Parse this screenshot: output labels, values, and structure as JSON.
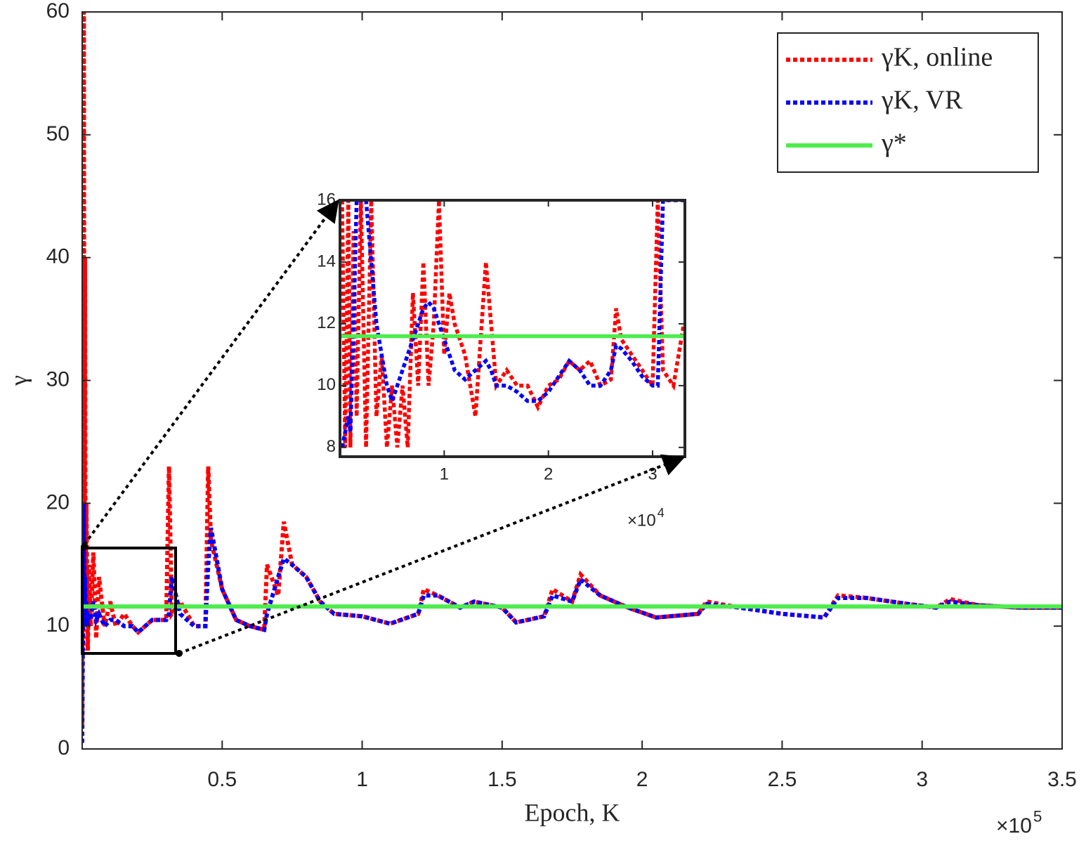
{
  "chart_data": [
    {
      "type": "line",
      "xlabel": "Epoch, K",
      "ylabel": "γ",
      "x_scale": {
        "base": "×10",
        "exponent": "5"
      },
      "xlim": [
        0,
        3.5
      ],
      "ylim": [
        0,
        60
      ],
      "xticks": [
        0.5,
        1,
        1.5,
        2,
        2.5,
        3,
        3.5
      ],
      "yticks": [
        0,
        10,
        20,
        30,
        40,
        50,
        60
      ],
      "legend": "northeast",
      "series": [
        {
          "name": "γK, online",
          "color": "#ff0000",
          "style": "dotted",
          "x": [
            0,
            0.002,
            0.004,
            0.006,
            0.008,
            0.01,
            0.012,
            0.015,
            0.02,
            0.025,
            0.03,
            0.04,
            0.05,
            0.06,
            0.08,
            0.1,
            0.12,
            0.15,
            0.18,
            0.2,
            0.25,
            0.3,
            0.31,
            0.32,
            0.35,
            0.4,
            0.44,
            0.45,
            0.46,
            0.5,
            0.55,
            0.6,
            0.65,
            0.66,
            0.7,
            0.72,
            0.75,
            0.8,
            0.85,
            0.9,
            1.0,
            1.1,
            1.2,
            1.22,
            1.27,
            1.35,
            1.4,
            1.5,
            1.55,
            1.65,
            1.68,
            1.75,
            1.78,
            1.85,
            1.95,
            2.05,
            2.2,
            2.23,
            2.35,
            2.5,
            2.65,
            2.7,
            2.8,
            2.95,
            3.05,
            3.1,
            3.2,
            3.35,
            3.5
          ],
          "values": [
            2,
            60,
            8,
            60,
            10,
            40,
            12,
            20,
            8,
            15,
            10,
            16,
            9,
            14,
            10,
            12,
            10,
            11,
            10,
            9.5,
            10.5,
            10.5,
            23,
            11,
            12,
            10,
            10,
            23,
            17,
            13,
            10.5,
            10,
            9.7,
            15,
            12.5,
            18.5,
            15,
            14,
            12,
            11,
            10.8,
            10.2,
            11,
            13,
            12.5,
            11.5,
            12,
            11.5,
            10.3,
            10.8,
            13,
            12,
            14.2,
            12.5,
            11.5,
            10.7,
            11,
            12,
            11.5,
            11,
            10.7,
            12.5,
            12.3,
            11.8,
            11.5,
            12.2,
            11.7,
            11.5,
            11.5
          ]
        },
        {
          "name": "γK, VR",
          "color": "#0000ff",
          "style": "dotted",
          "x": [
            0,
            0.002,
            0.004,
            0.006,
            0.008,
            0.01,
            0.012,
            0.015,
            0.02,
            0.025,
            0.03,
            0.04,
            0.05,
            0.06,
            0.08,
            0.1,
            0.12,
            0.15,
            0.18,
            0.2,
            0.25,
            0.3,
            0.31,
            0.32,
            0.35,
            0.4,
            0.44,
            0.45,
            0.46,
            0.5,
            0.55,
            0.6,
            0.65,
            0.66,
            0.7,
            0.72,
            0.75,
            0.8,
            0.85,
            0.9,
            1.0,
            1.1,
            1.2,
            1.22,
            1.27,
            1.35,
            1.4,
            1.5,
            1.55,
            1.65,
            1.68,
            1.75,
            1.78,
            1.85,
            1.95,
            2.05,
            2.2,
            2.23,
            2.35,
            2.5,
            2.65,
            2.7,
            2.8,
            2.95,
            3.05,
            3.1,
            3.2,
            3.35,
            3.5
          ],
          "values": [
            0.5,
            8,
            12,
            20,
            10,
            14,
            11,
            12,
            10,
            11,
            10.5,
            12,
            10.5,
            11,
            10,
            10.5,
            10.5,
            10,
            10,
            9.5,
            10.5,
            10.5,
            11,
            14,
            11,
            10,
            10,
            15,
            18,
            13,
            10.5,
            10,
            9.7,
            11,
            14,
            15.5,
            15,
            14,
            12,
            11,
            10.8,
            10.2,
            11,
            12.5,
            12.5,
            11.5,
            12,
            11.5,
            10.3,
            10.8,
            12.5,
            12,
            13.8,
            12.5,
            11.5,
            10.7,
            11,
            11.8,
            11.5,
            11,
            10.7,
            12.3,
            12.3,
            11.8,
            11.5,
            12,
            11.7,
            11.5,
            11.5
          ]
        },
        {
          "name": "γ*",
          "color": "#4ded4d",
          "style": "solid",
          "x": [
            0,
            3.5
          ],
          "values": [
            11.6,
            11.6
          ]
        }
      ]
    },
    {
      "type": "line",
      "x_scale": {
        "base": "×10",
        "exponent": "4"
      },
      "xlim": [
        0,
        3.31
      ],
      "ylim": [
        7.7,
        16
      ],
      "xticks": [
        1,
        2,
        3
      ],
      "yticks": [
        8,
        10,
        12,
        14,
        16
      ],
      "series": [
        {
          "color": "#ff0000",
          "style": "dotted",
          "x": [
            0.02,
            0.05,
            0.08,
            0.1,
            0.13,
            0.16,
            0.2,
            0.25,
            0.3,
            0.35,
            0.4,
            0.45,
            0.5,
            0.55,
            0.6,
            0.65,
            0.7,
            0.75,
            0.8,
            0.85,
            0.9,
            0.95,
            1.0,
            1.05,
            1.1,
            1.2,
            1.3,
            1.4,
            1.45,
            1.5,
            1.6,
            1.7,
            1.8,
            1.9,
            2.0,
            2.1,
            2.2,
            2.3,
            2.4,
            2.5,
            2.6,
            2.65,
            2.7,
            2.8,
            2.9,
            3.0,
            3.05,
            3.1,
            3.2,
            3.3
          ],
          "values": [
            16,
            8,
            16,
            8,
            15,
            9,
            16,
            8,
            16,
            9,
            11,
            8,
            10,
            8,
            10,
            8,
            13,
            10,
            14,
            10,
            12,
            16,
            11,
            13,
            12,
            11,
            9,
            14,
            12,
            10,
            10.5,
            10,
            10,
            9.3,
            10,
            10.2,
            10.8,
            10.5,
            10.8,
            10,
            10.2,
            12.5,
            11.5,
            11,
            10.5,
            10,
            16,
            10.5,
            10,
            12
          ]
        },
        {
          "color": "#0000ff",
          "style": "dotted",
          "x": [
            0.02,
            0.05,
            0.08,
            0.1,
            0.13,
            0.16,
            0.2,
            0.25,
            0.3,
            0.35,
            0.4,
            0.45,
            0.5,
            0.55,
            0.6,
            0.65,
            0.7,
            0.75,
            0.8,
            0.85,
            0.9,
            0.95,
            1.0,
            1.05,
            1.1,
            1.2,
            1.3,
            1.4,
            1.45,
            1.5,
            1.6,
            1.7,
            1.8,
            1.9,
            2.0,
            2.1,
            2.2,
            2.3,
            2.4,
            2.5,
            2.6,
            2.65,
            2.7,
            2.8,
            2.9,
            3.0,
            3.05,
            3.1,
            3.2,
            3.3
          ],
          "values": [
            8,
            8.5,
            9,
            8.5,
            12,
            16,
            16,
            16,
            14,
            12,
            11,
            10,
            9.5,
            10,
            10.5,
            11,
            11.5,
            12,
            12.5,
            12.7,
            12.5,
            12,
            11.5,
            11,
            10.5,
            10.2,
            10.5,
            10.8,
            10.5,
            10,
            10,
            9.8,
            9.5,
            9.5,
            9.8,
            10.3,
            10.8,
            10.5,
            10,
            10,
            10.5,
            11.3,
            11.2,
            10.8,
            10.3,
            10,
            10,
            16,
            16,
            16
          ]
        },
        {
          "color": "#4ded4d",
          "style": "solid",
          "x": [
            0,
            3.31
          ],
          "values": [
            11.6,
            11.6
          ]
        }
      ]
    }
  ]
}
